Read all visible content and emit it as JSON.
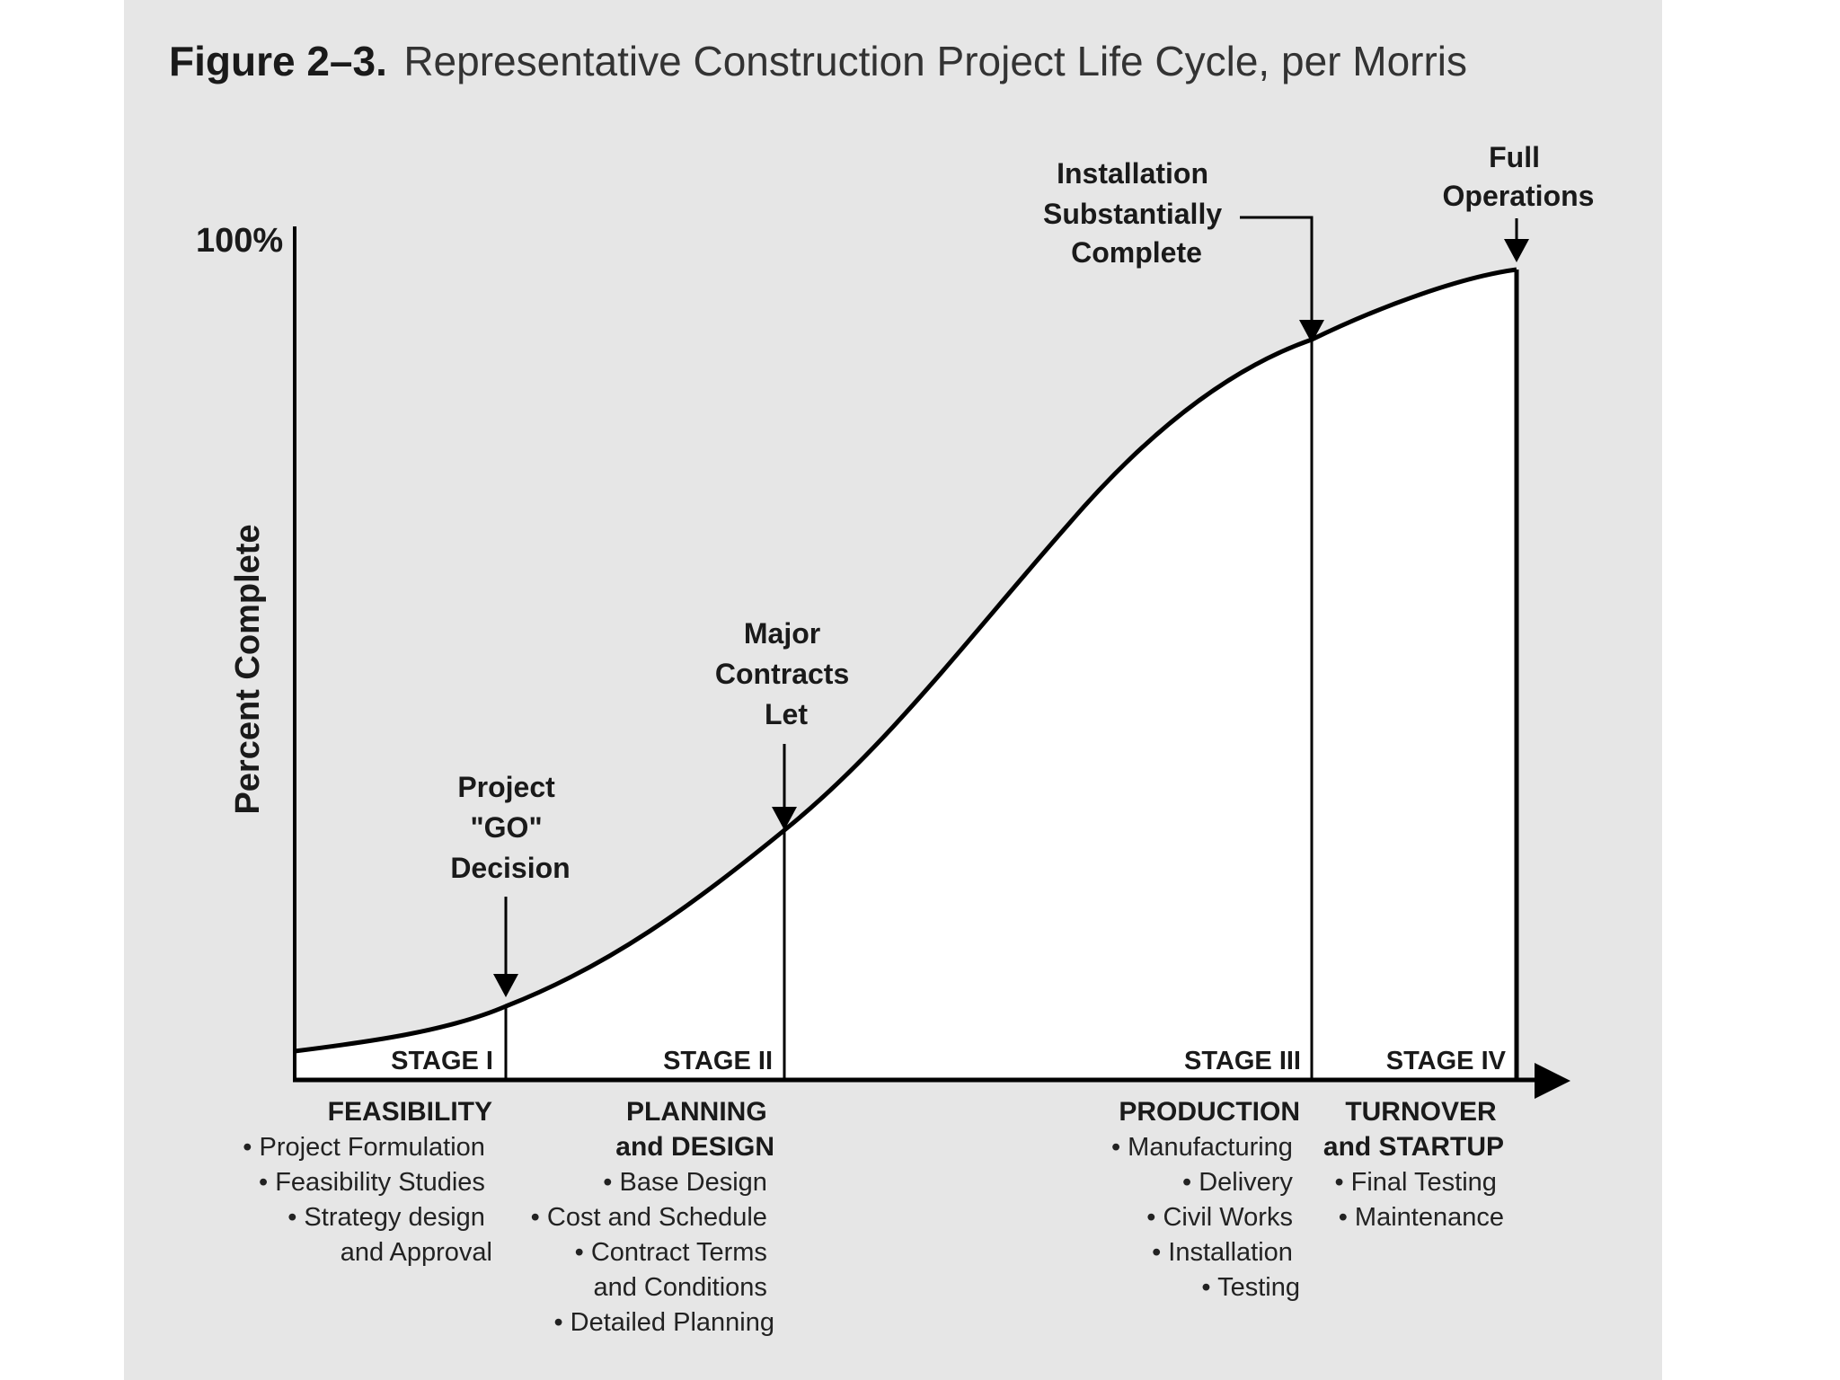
{
  "figure": {
    "number": "Figure 2–3.",
    "caption": "Representative Construction Project Life Cycle, per Morris"
  },
  "axes": {
    "y_label": "Percent Complete",
    "y_max_label": "100%"
  },
  "milestones": [
    {
      "id": "go",
      "lines": [
        "Project",
        "\"GO\"",
        "Decision"
      ]
    },
    {
      "id": "contracts",
      "lines": [
        "Major",
        "Contracts",
        "Let"
      ]
    },
    {
      "id": "installation",
      "lines": [
        "Installation",
        "Substantially",
        "Complete"
      ]
    },
    {
      "id": "operations",
      "lines": [
        "Full",
        "Operations"
      ]
    }
  ],
  "stages": [
    {
      "label": "STAGE I",
      "title_lines": [
        "FEASIBILITY"
      ],
      "items": [
        "• Project Formulation",
        "• Feasibility Studies",
        "• Strategy design",
        "and Approval"
      ]
    },
    {
      "label": "STAGE II",
      "title_lines": [
        "PLANNING",
        "and DESIGN"
      ],
      "items": [
        "• Base Design",
        "• Cost and Schedule",
        "• Contract Terms",
        "and Conditions",
        "• Detailed Planning"
      ]
    },
    {
      "label": "STAGE III",
      "title_lines": [
        "PRODUCTION"
      ],
      "items": [
        "• Manufacturing",
        "• Delivery",
        "• Civil Works",
        "• Installation",
        "• Testing"
      ]
    },
    {
      "label": "STAGE IV",
      "title_lines": [
        "TURNOVER",
        "and STARTUP"
      ],
      "items": [
        "• Final Testing",
        "• Maintenance"
      ]
    }
  ],
  "colors": {
    "panel_bg": "#e6e6e6",
    "plot_area": "#ffffff",
    "ink": "#000000"
  }
}
